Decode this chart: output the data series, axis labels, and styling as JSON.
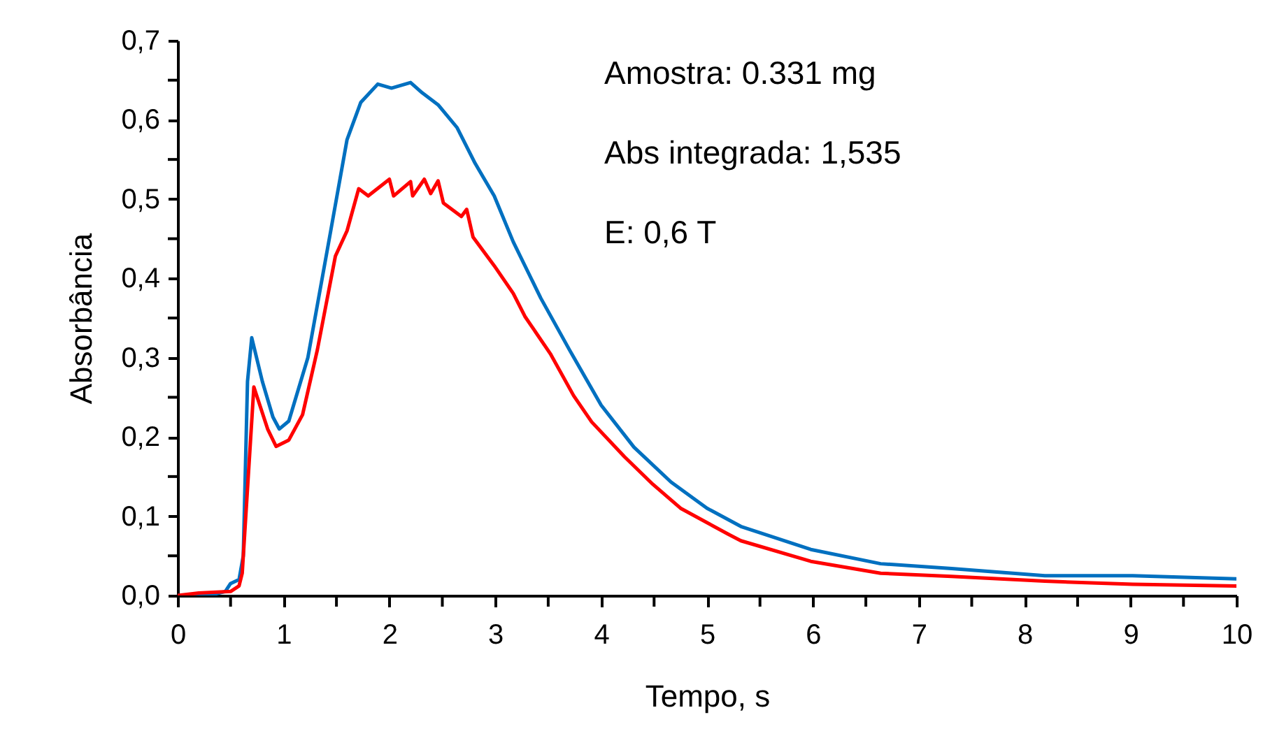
{
  "chart_data": {
    "type": "line",
    "xlabel": "Tempo, s",
    "ylabel": "Absorbância",
    "annotations": [
      "Amostra: 0.331 mg",
      "Abs integrada: 1,535",
      "E: 0,6 T"
    ],
    "xlim": [
      0,
      10
    ],
    "ylim": [
      0,
      0.7
    ],
    "xticks": [
      0,
      {
        "value": 0.5,
        "label": null
      },
      1,
      {
        "value": 1.5,
        "label": null
      },
      2,
      {
        "value": 2.5,
        "label": null
      },
      3,
      {
        "value": 3.5,
        "label": null
      },
      4,
      {
        "value": 4.5,
        "label": null
      },
      5,
      {
        "value": 5.5,
        "label": null
      },
      6,
      {
        "value": 6.5,
        "label": null
      },
      7,
      {
        "value": 7.5,
        "label": null
      },
      8,
      {
        "value": 8.5,
        "label": null
      },
      9,
      {
        "value": 9.5,
        "label": null
      },
      10
    ],
    "yticks": [
      {
        "value": 0,
        "label": "0,0"
      },
      {
        "value": 0.05,
        "label": null
      },
      {
        "value": 0.1,
        "label": "0,1"
      },
      {
        "value": 0.15,
        "label": null
      },
      {
        "value": 0.2,
        "label": "0,2"
      },
      {
        "value": 0.25,
        "label": null
      },
      {
        "value": 0.3,
        "label": "0,3"
      },
      {
        "value": 0.35,
        "label": null
      },
      {
        "value": 0.4,
        "label": "0,4"
      },
      {
        "value": 0.45,
        "label": null
      },
      {
        "value": 0.5,
        "label": "0,5"
      },
      {
        "value": 0.55,
        "label": null
      },
      {
        "value": 0.6,
        "label": "0,6"
      },
      {
        "value": 0.65,
        "label": null
      },
      {
        "value": 0.7,
        "label": "0,7"
      }
    ],
    "grid": false,
    "marker": "none",
    "line_style": "solid",
    "series": [
      {
        "color": "#0070c0",
        "x": [
          0,
          0.3,
          0.45,
          0.5,
          0.58,
          0.62,
          0.66,
          0.7,
          0.8,
          0.9,
          0.96,
          1.05,
          1.23,
          1.45,
          1.6,
          1.73,
          1.89,
          2.02,
          2.2,
          2.31,
          2.46,
          2.64,
          2.81,
          2.99,
          3.17,
          3.43,
          3.7,
          4.0,
          4.31,
          4.66,
          5.0,
          5.32,
          5.98,
          6.64,
          7.31,
          8.19,
          9.02,
          10
        ],
        "values": [
          0,
          0,
          0.005,
          0.015,
          0.02,
          0.05,
          0.27,
          0.325,
          0.27,
          0.225,
          0.21,
          0.22,
          0.3,
          0.463,
          0.575,
          0.622,
          0.645,
          0.64,
          0.647,
          0.634,
          0.619,
          0.59,
          0.545,
          0.504,
          0.446,
          0.375,
          0.31,
          0.24,
          0.187,
          0.143,
          0.11,
          0.087,
          0.058,
          0.04,
          0.034,
          0.025,
          0.025,
          0.021
        ]
      },
      {
        "color": "#ff0000",
        "x": [
          0,
          0.2,
          0.5,
          0.58,
          0.61,
          0.72,
          0.85,
          0.93,
          1.05,
          1.18,
          1.32,
          1.49,
          1.6,
          1.71,
          1.8,
          2.0,
          2.04,
          2.2,
          2.22,
          2.33,
          2.39,
          2.46,
          2.51,
          2.68,
          2.73,
          2.79,
          2.99,
          3.17,
          3.28,
          3.52,
          3.74,
          3.91,
          4.22,
          4.49,
          4.75,
          5.19,
          5.32,
          5.98,
          6.64,
          7.31,
          8.19,
          9.02,
          10
        ],
        "values": [
          0,
          0.003,
          0.005,
          0.012,
          0.028,
          0.263,
          0.21,
          0.188,
          0.196,
          0.228,
          0.31,
          0.428,
          0.46,
          0.513,
          0.504,
          0.525,
          0.504,
          0.522,
          0.504,
          0.525,
          0.507,
          0.523,
          0.495,
          0.478,
          0.487,
          0.452,
          0.416,
          0.381,
          0.352,
          0.305,
          0.252,
          0.219,
          0.175,
          0.14,
          0.11,
          0.078,
          0.069,
          0.043,
          0.028,
          0.024,
          0.018,
          0.014,
          0.012
        ]
      }
    ]
  }
}
